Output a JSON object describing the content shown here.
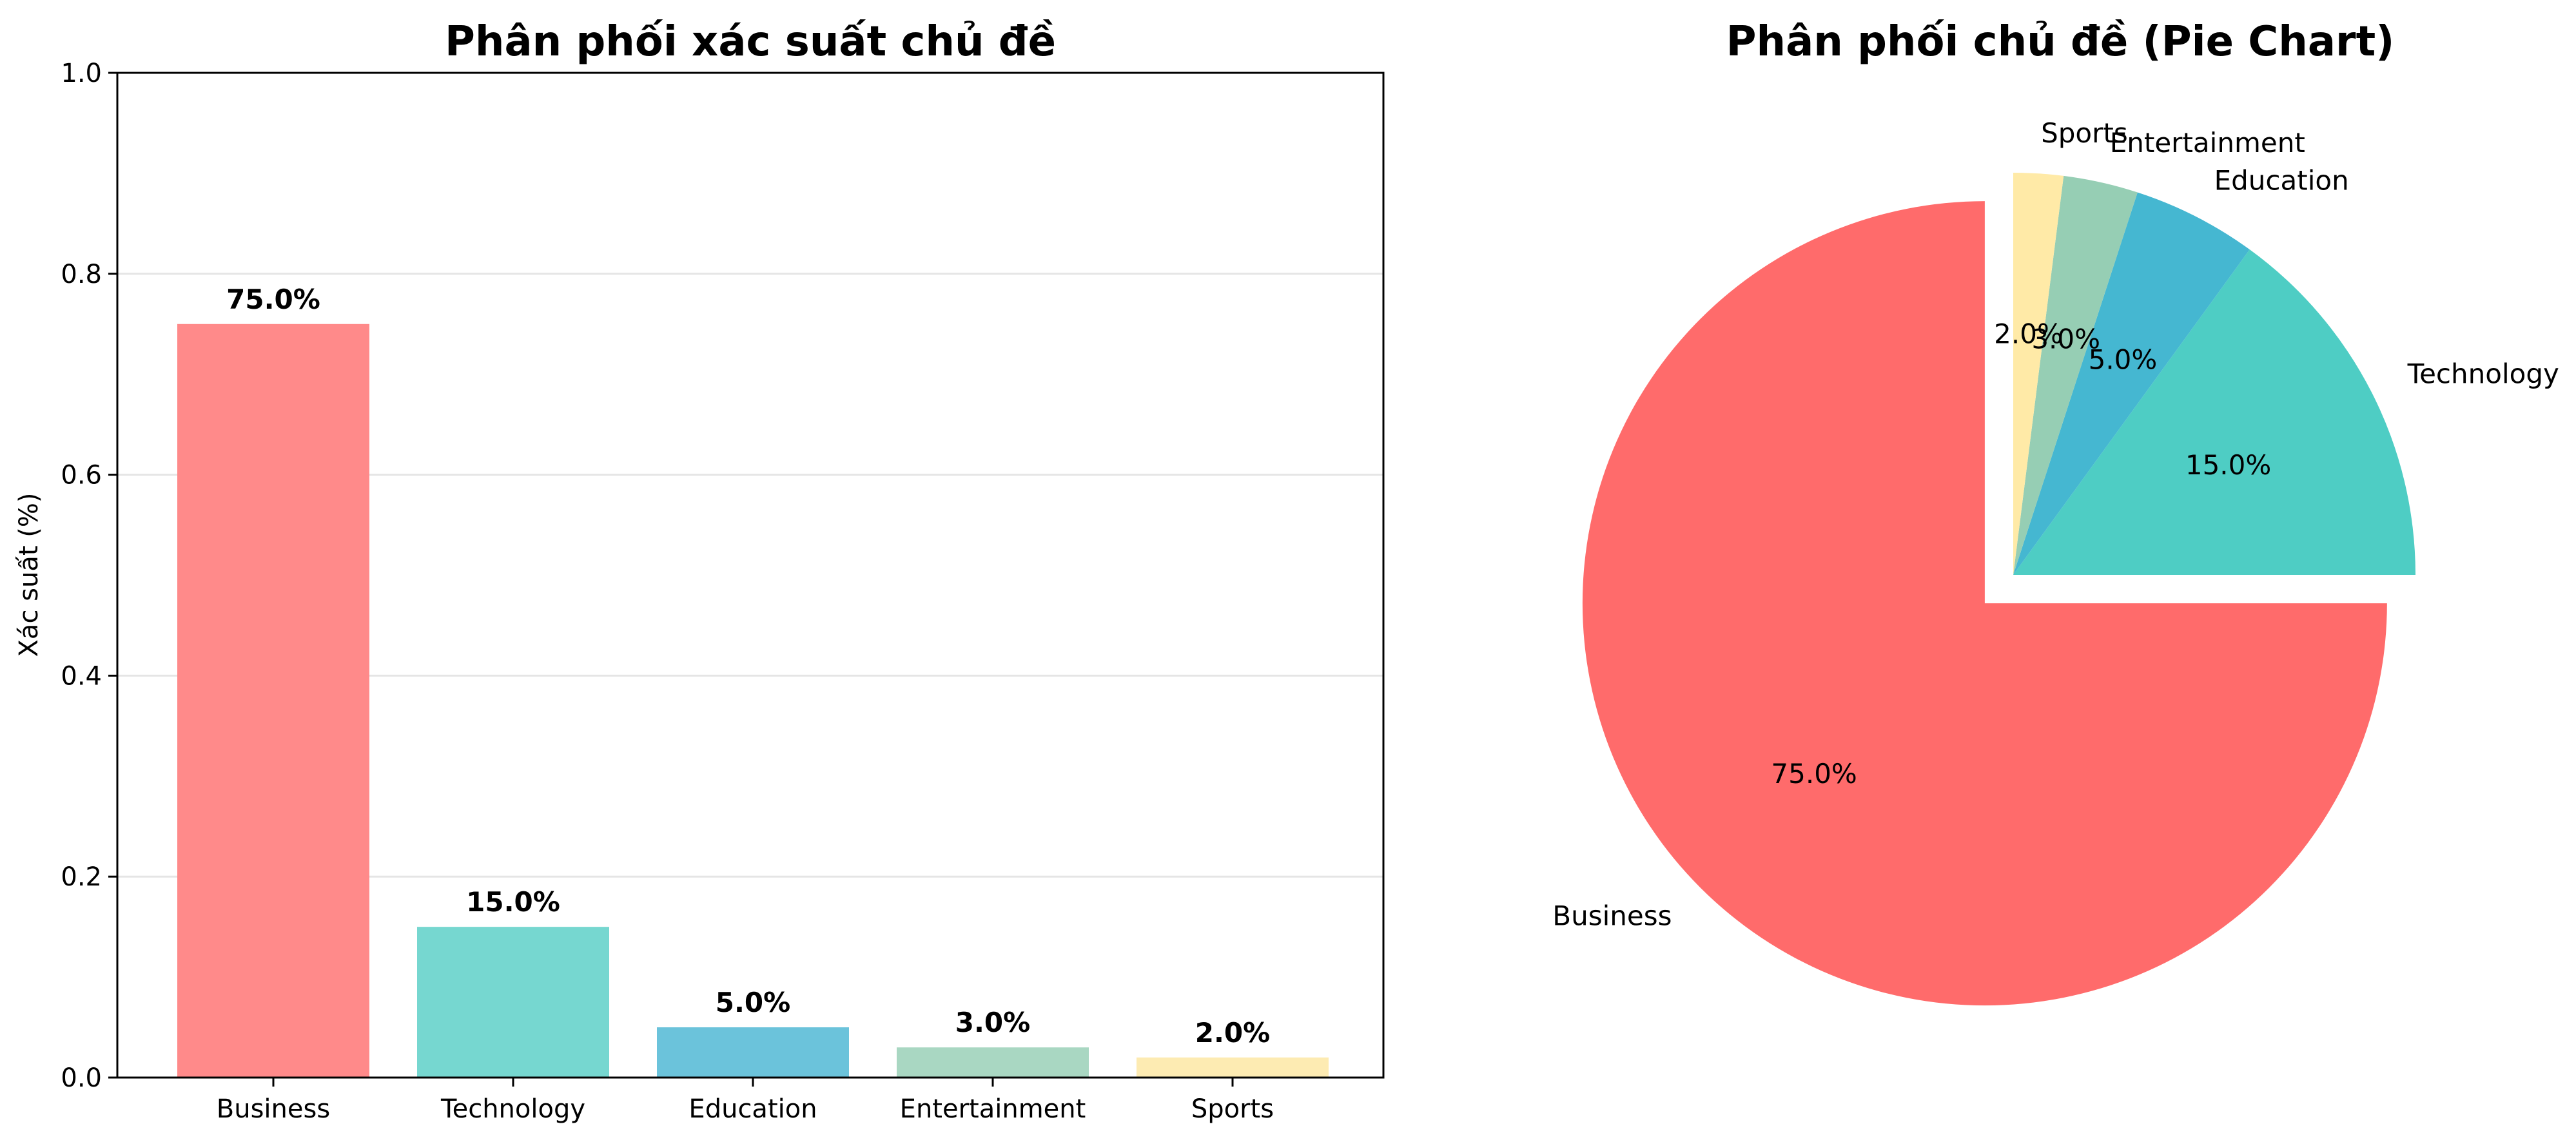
{
  "chart_data": [
    {
      "type": "bar",
      "title": "Phân phối xác suất chủ đề",
      "xlabel": "",
      "ylabel": "Xác suất (%)",
      "ylim": [
        0,
        1.0
      ],
      "yticks": [
        0.0,
        0.2,
        0.4,
        0.6,
        0.8,
        1.0
      ],
      "ytick_labels": [
        "0.0",
        "0.2",
        "0.4",
        "0.6",
        "0.8",
        "1.0"
      ],
      "grid": "y-only",
      "categories": [
        "Business",
        "Technology",
        "Education",
        "Entertainment",
        "Sports"
      ],
      "values": [
        0.75,
        0.15,
        0.05,
        0.03,
        0.02
      ],
      "value_labels": [
        "75.0%",
        "15.0%",
        "5.0%",
        "3.0%",
        "2.0%"
      ],
      "colors": [
        "#FF8A8A",
        "#76D7D0",
        "#6BC3DB",
        "#A9D7C2",
        "#FDEBB2"
      ]
    },
    {
      "type": "pie",
      "title": "Phân phối chủ đề (Pie Chart)",
      "labels": [
        "Business",
        "Technology",
        "Education",
        "Entertainment",
        "Sports"
      ],
      "values": [
        75.0,
        15.0,
        5.0,
        3.0,
        2.0
      ],
      "pct_labels": [
        "75.0%",
        "15.0%",
        "5.0%",
        "3.0%",
        "2.0%"
      ],
      "exploded": "Business",
      "colors": [
        "#FF6B6B",
        "#4ECDC4",
        "#45B7D1",
        "#96CEB4",
        "#FFEAA7"
      ]
    }
  ]
}
